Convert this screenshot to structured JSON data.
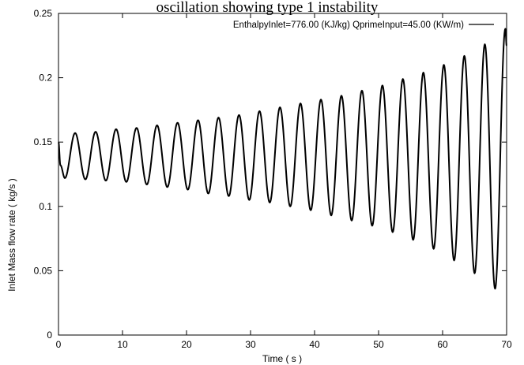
{
  "chart_data": {
    "type": "line",
    "title": "oscillation showing type 1 instability",
    "xlabel": "Time ( s )",
    "ylabel": "Inlet Mass flow rate ( kg/s )",
    "xlim": [
      0,
      70
    ],
    "ylim": [
      0,
      0.25
    ],
    "x_ticks": [
      "0",
      "10",
      "20",
      "30",
      "40",
      "50",
      "60",
      "70"
    ],
    "y_ticks": [
      "0",
      "0.05",
      "0.1",
      "0.15",
      "0.2",
      "0.25"
    ],
    "grid": false,
    "legend_position": "top-right",
    "series": [
      {
        "name": "EnthalpyInlet=776.00 (KJ/kg)  QprimeInput=45.00 (KW/m)",
        "color": "#000000",
        "oscillation_period_s": 3.2,
        "x": [
          0,
          0.3,
          1.0,
          2.6,
          4.2,
          5.8,
          7.4,
          9.0,
          10.6,
          12.2,
          13.8,
          15.4,
          17.0,
          18.6,
          20.2,
          21.8,
          23.4,
          25.0,
          26.6,
          28.2,
          29.8,
          31.4,
          33.0,
          34.6,
          36.2,
          37.8,
          39.4,
          41.0,
          42.6,
          44.2,
          45.8,
          47.4,
          49.0,
          50.6,
          52.2,
          53.8,
          55.4,
          57.0,
          58.6,
          60.2,
          61.8,
          63.4,
          65.0,
          66.6,
          68.2,
          69.8,
          70.0
        ],
        "y": [
          0.15,
          0.132,
          0.122,
          0.157,
          0.121,
          0.158,
          0.12,
          0.16,
          0.119,
          0.161,
          0.117,
          0.163,
          0.115,
          0.165,
          0.113,
          0.167,
          0.11,
          0.169,
          0.108,
          0.171,
          0.105,
          0.174,
          0.103,
          0.177,
          0.1,
          0.18,
          0.097,
          0.183,
          0.093,
          0.186,
          0.089,
          0.19,
          0.085,
          0.194,
          0.08,
          0.199,
          0.074,
          0.204,
          0.067,
          0.21,
          0.058,
          0.217,
          0.048,
          0.226,
          0.036,
          0.238,
          0.225
        ]
      }
    ]
  }
}
